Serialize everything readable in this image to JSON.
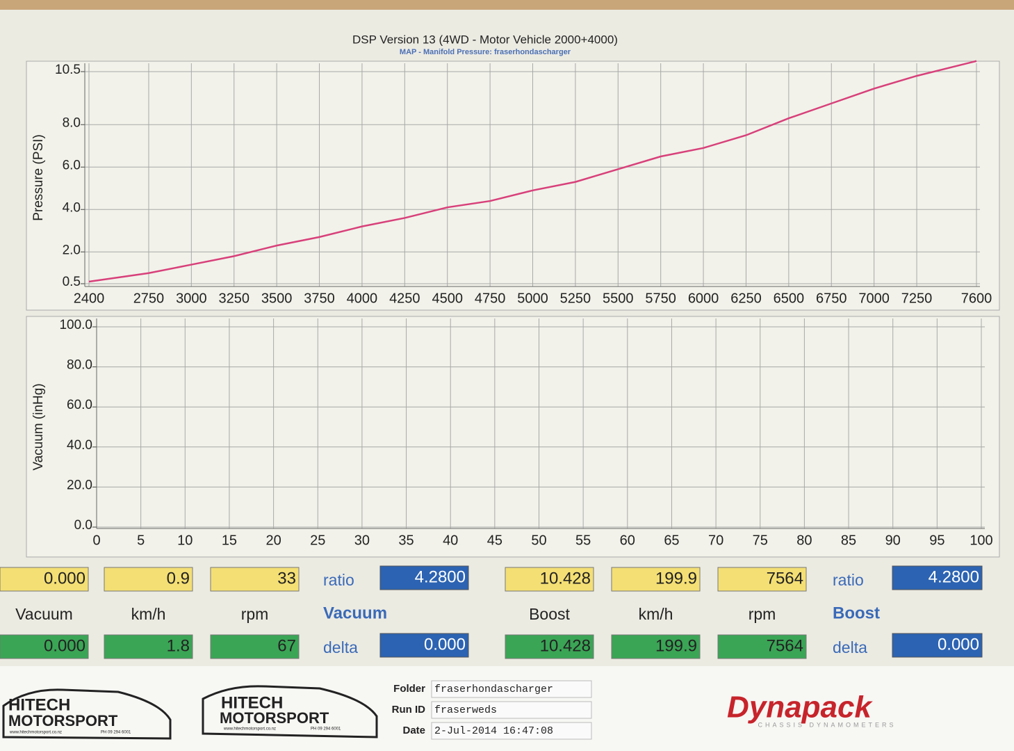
{
  "chart_data": [
    {
      "type": "line",
      "title": "DSP Version 13 (4WD - Motor Vehicle 2000+4000)",
      "subtitle": "MAP - Manifold Pressure: fraserhondascharger",
      "y_label": "Pressure (PSI)",
      "x": [
        2400,
        2750,
        3000,
        3250,
        3500,
        3750,
        4000,
        4250,
        4500,
        4750,
        5000,
        5250,
        5500,
        5750,
        6000,
        6250,
        6500,
        6750,
        7000,
        7250,
        7600
      ],
      "series": [
        {
          "color": "#d8407a",
          "values": [
            0.6,
            1.0,
            1.4,
            1.8,
            2.3,
            2.7,
            3.2,
            3.6,
            4.1,
            4.4,
            4.9,
            5.3,
            5.9,
            6.5,
            6.9,
            7.5,
            8.3,
            9.0,
            9.7,
            10.3,
            11.0
          ]
        }
      ],
      "xlim": [
        2400,
        7600
      ],
      "xticks": [
        2400,
        2750,
        3000,
        3250,
        3500,
        3750,
        4000,
        4250,
        4500,
        4750,
        5000,
        5250,
        5500,
        5750,
        6000,
        6250,
        6500,
        6750,
        7000,
        7250,
        7600
      ],
      "ylim": [
        0.5,
        10.5
      ],
      "yticks": [
        0.5,
        {
          "value": 2,
          "label": "2.0"
        },
        {
          "value": 4,
          "label": "4.0"
        },
        {
          "value": 6,
          "label": "6.0"
        },
        {
          "value": 8,
          "label": "8.0"
        },
        10.5
      ],
      "grid": true
    },
    {
      "type": "line",
      "y_label": "Vacuum (inHg)",
      "series": [],
      "xlim": [
        0,
        100
      ],
      "xticks": [
        0,
        5,
        10,
        15,
        20,
        25,
        30,
        35,
        40,
        45,
        50,
        55,
        60,
        65,
        70,
        75,
        80,
        85,
        90,
        95,
        100
      ],
      "ylim": [
        0,
        100
      ],
      "yticks": [
        {
          "value": 0,
          "label": "0.0"
        },
        {
          "value": 20,
          "label": "20.0"
        },
        {
          "value": 40,
          "label": "40.0"
        },
        {
          "value": 60,
          "label": "60.0"
        },
        {
          "value": 80,
          "label": "80.0"
        },
        {
          "value": 100,
          "label": "100.0"
        }
      ],
      "grid": true
    }
  ],
  "readouts": [
    {
      "top": [
        "0.000",
        "0.9",
        "33"
      ],
      "top_label": "ratio",
      "top_box": "4.2800",
      "labels": [
        "Vacuum",
        "km/h",
        "rpm"
      ],
      "heading": "Vacuum",
      "bottom": [
        "0.000",
        "1.8",
        "67"
      ],
      "bottom_label": "delta",
      "bottom_box": "0.000"
    },
    {
      "top": [
        "10.428",
        "199.9",
        "7564"
      ],
      "top_label": "ratio",
      "top_box": "4.2800",
      "labels": [
        "Boost",
        "km/h",
        "rpm"
      ],
      "heading": "Boost",
      "bottom": [
        "10.428",
        "199.9",
        "7564"
      ],
      "bottom_label": "delta",
      "bottom_box": "0.000"
    }
  ],
  "footer": {
    "logo_line1": "HITECH",
    "logo_line2": "MOTORSPORT",
    "logo_small": "www.hitechmotorsport.co.nz",
    "logo_phone": "PH 09 294 6001",
    "fields": [
      {
        "label": "Folder",
        "value": "fraserhondascharger"
      },
      {
        "label": "Run ID",
        "value": "fraserweds"
      },
      {
        "label": "Date",
        "value": "2-Jul-2014 16:47:08"
      }
    ],
    "brand": "Dynapack",
    "brand_sub": "CHASSIS DYNAMOMETERS"
  }
}
